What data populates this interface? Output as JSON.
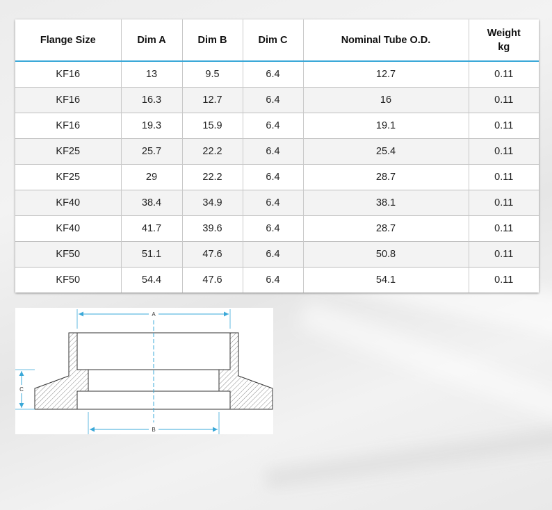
{
  "table": {
    "headers": [
      "Flange Size",
      "Dim A",
      "Dim B",
      "Dim C",
      "Nominal Tube O.D.",
      "Weight kg"
    ],
    "header_weight_line1": "Weight",
    "header_weight_line2": "kg",
    "rows": [
      [
        "KF16",
        "13",
        "9.5",
        "6.4",
        "12.7",
        "0.11"
      ],
      [
        "KF16",
        "16.3",
        "12.7",
        "6.4",
        "16",
        "0.11"
      ],
      [
        "KF16",
        "19.3",
        "15.9",
        "6.4",
        "19.1",
        "0.11"
      ],
      [
        "KF25",
        "25.7",
        "22.2",
        "6.4",
        "25.4",
        "0.11"
      ],
      [
        "KF25",
        "29",
        "22.2",
        "6.4",
        "28.7",
        "0.11"
      ],
      [
        "KF40",
        "38.4",
        "34.9",
        "6.4",
        "38.1",
        "0.11"
      ],
      [
        "KF40",
        "41.7",
        "39.6",
        "6.4",
        "28.7",
        "0.11"
      ],
      [
        "KF50",
        "51.1",
        "47.6",
        "6.4",
        "50.8",
        "0.11"
      ],
      [
        "KF50",
        "54.4",
        "47.6",
        "6.4",
        "54.1",
        "0.11"
      ]
    ],
    "accent_color": "#3aa8d8"
  },
  "diagram": {
    "label_a": "A",
    "label_b": "B",
    "label_c": "C",
    "dimension_color": "#3aa8d8"
  }
}
